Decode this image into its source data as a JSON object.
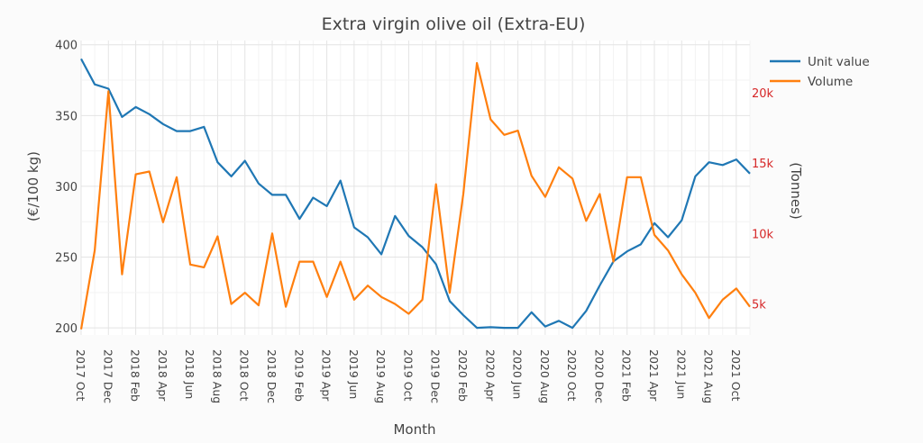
{
  "chart_data": {
    "type": "line",
    "title": "Extra virgin olive oil (Extra-EU)",
    "xlabel": "Month",
    "ylabel": "(€/100 kg)",
    "y2label": "(Tonnes)",
    "ylim": [
      195,
      403
    ],
    "y2lim": [
      2800,
      23700
    ],
    "yticks": [
      200,
      250,
      300,
      350,
      400
    ],
    "y2ticks": [
      5000,
      10000,
      15000,
      20000
    ],
    "y2ticklabels": [
      "5k",
      "10k",
      "15k",
      "20k"
    ],
    "x": [
      "2017 Oct",
      "2017 Nov",
      "2017 Dec",
      "2018 Jan",
      "2018 Feb",
      "2018 Mar",
      "2018 Apr",
      "2018 May",
      "2018 Jun",
      "2018 Jul",
      "2018 Aug",
      "2018 Sep",
      "2018 Oct",
      "2018 Nov",
      "2018 Dec",
      "2019 Jan",
      "2019 Feb",
      "2019 Mar",
      "2019 Apr",
      "2019 May",
      "2019 Jun",
      "2019 Jul",
      "2019 Aug",
      "2019 Sep",
      "2019 Oct",
      "2019 Nov",
      "2019 Dec",
      "2020 Jan",
      "2020 Feb",
      "2020 Mar",
      "2020 Apr",
      "2020 May",
      "2020 Jun",
      "2020 Jul",
      "2020 Aug",
      "2020 Sep",
      "2020 Oct",
      "2020 Nov",
      "2020 Dec",
      "2021 Jan",
      "2021 Feb",
      "2021 Mar",
      "2021 Apr",
      "2021 May",
      "2021 Jun",
      "2021 Jul",
      "2021 Aug",
      "2021 Sep",
      "2021 Oct",
      "2021 Nov"
    ],
    "xticklabels": [
      "2017 Oct",
      "2017 Dec",
      "2018 Feb",
      "2018 Apr",
      "2018 Jun",
      "2018 Aug",
      "2018 Oct",
      "2018 Dec",
      "2019 Feb",
      "2019 Apr",
      "2019 Jun",
      "2019 Aug",
      "2019 Oct",
      "2019 Dec",
      "2020 Feb",
      "2020 Apr",
      "2020 Jun",
      "2020 Aug",
      "2020 Oct",
      "2020 Dec",
      "2021 Feb",
      "2021 Apr",
      "2021 Jun",
      "2021 Aug",
      "2021 Oct"
    ],
    "series": [
      {
        "name": "Unit value",
        "axis": "left",
        "color": "#1f77b4",
        "values": [
          390,
          372,
          369,
          349,
          356,
          351,
          344,
          339,
          339,
          342,
          317,
          307,
          318,
          302,
          294,
          294,
          277,
          292,
          286,
          304,
          271,
          264,
          252,
          279,
          265,
          257,
          245,
          219,
          209,
          200,
          200.5,
          200,
          200,
          211,
          201,
          205,
          200,
          212,
          230,
          247,
          254,
          259,
          274,
          264,
          276,
          307,
          317,
          315,
          319,
          309
        ]
      },
      {
        "name": "Volume",
        "axis": "right",
        "color": "#ff7f0e",
        "values": [
          3200,
          8800,
          20100,
          7100,
          14200,
          14400,
          10800,
          14000,
          7800,
          7600,
          9800,
          5000,
          5800,
          4900,
          10000,
          4800,
          8000,
          8000,
          5500,
          8000,
          5300,
          6300,
          5500,
          5000,
          4300,
          5300,
          13500,
          5800,
          12800,
          22100,
          18100,
          17000,
          17300,
          14100,
          12600,
          14700,
          13900,
          10900,
          12800,
          8000,
          14000,
          14000,
          9900,
          8800,
          7100,
          5800,
          4000,
          5300,
          6100,
          4800
        ]
      }
    ],
    "legend": "top-right",
    "grid": true
  }
}
